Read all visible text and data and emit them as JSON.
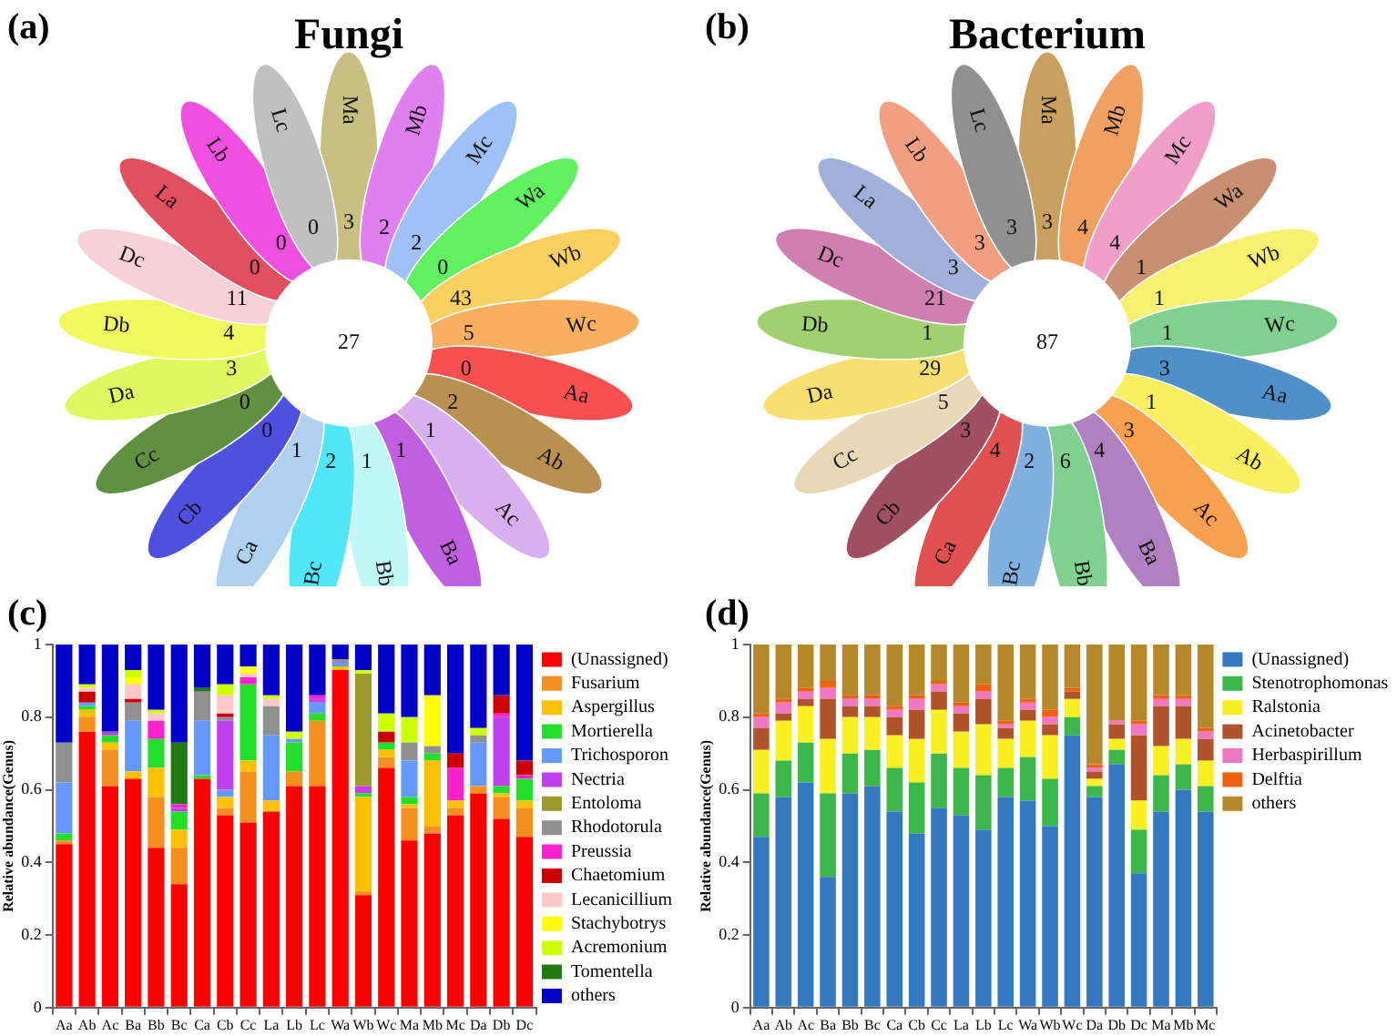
{
  "chart_data": [
    {
      "type": "other",
      "title": "Fungi",
      "annotations": [
        "(a)",
        "27"
      ],
      "data_labels": true,
      "categories": [
        "Ma",
        "Mb",
        "Mc",
        "Wa",
        "Wb",
        "Wc",
        "Aa",
        "Ab",
        "Ac",
        "Ba",
        "Bb",
        "Bc",
        "Ca",
        "Cb",
        "Cc",
        "Da",
        "Db",
        "Dc",
        "La",
        "Lb",
        "Lc"
      ],
      "values": [
        3,
        2,
        2,
        0,
        43,
        5,
        0,
        2,
        1,
        1,
        1,
        2,
        1,
        0,
        0,
        3,
        4,
        11,
        0,
        0,
        0
      ],
      "colors": [
        "#c8c080",
        "#e080f0",
        "#a0c0f8",
        "#60f060",
        "#f8d060",
        "#f8b060",
        "#f85050",
        "#b89050",
        "#d8b0f0",
        "#c060e0",
        "#c0f8f8",
        "#50e8f8",
        "#b0d0f0",
        "#5050e0",
        "#609040",
        "#e0f860",
        "#f0f860",
        "#f8d0d8",
        "#e05060",
        "#f050e0",
        "#c0c0c0"
      ]
    },
    {
      "type": "other",
      "title": "Bacterium",
      "annotations": [
        "(b)",
        "87"
      ],
      "data_labels": true,
      "categories": [
        "Ma",
        "Mb",
        "Mc",
        "Wa",
        "Wb",
        "Wc",
        "Aa",
        "Ab",
        "Ac",
        "Ba",
        "Bb",
        "Bc",
        "Ca",
        "Cb",
        "Cc",
        "Da",
        "Db",
        "Dc",
        "La",
        "Lb",
        "Lc"
      ],
      "values": [
        3,
        4,
        4,
        1,
        1,
        1,
        3,
        1,
        3,
        4,
        6,
        2,
        4,
        3,
        5,
        29,
        1,
        21,
        3,
        3,
        3
      ],
      "colors": [
        "#c8a060",
        "#f0a060",
        "#f0a0c8",
        "#c89070",
        "#f8f070",
        "#80d090",
        "#5090c8",
        "#f8f060",
        "#f8a050",
        "#b080c0",
        "#80d090",
        "#80b0e0",
        "#e05050",
        "#a05060",
        "#e8d8b8",
        "#f8e070",
        "#a0d070",
        "#d080b0",
        "#a0b0d8",
        "#f0a080",
        "#909090"
      ]
    },
    {
      "type": "bar",
      "stacked": true,
      "ylabel": "Relative abundance(Genus)",
      "legend": "right",
      "annotations": [
        "(c)"
      ],
      "ylim": [
        0,
        1
      ],
      "yticks": [
        0,
        0.2,
        0.4,
        0.6,
        0.8,
        1
      ],
      "categories": [
        "Aa",
        "Ab",
        "Ac",
        "Ba",
        "Bb",
        "Bc",
        "Ca",
        "Cb",
        "Cc",
        "La",
        "Lb",
        "Lc",
        "Wa",
        "Wb",
        "Wc",
        "Ma",
        "Mb",
        "Mc",
        "Da",
        "Db",
        "Dc"
      ],
      "series": [
        {
          "name": "(Unassigned)",
          "color": "#ff0000",
          "values": [
            0.45,
            0.76,
            0.61,
            0.63,
            0.44,
            0.34,
            0.63,
            0.53,
            0.51,
            0.54,
            0.61,
            0.61,
            0.93,
            0.31,
            0.66,
            0.46,
            0.48,
            0.53,
            0.59,
            0.52,
            0.47
          ]
        },
        {
          "name": "Fusarium",
          "color": "#f5901f",
          "values": [
            0.01,
            0.04,
            0.1,
            0,
            0.14,
            0.1,
            0,
            0.02,
            0.14,
            0,
            0.04,
            0.18,
            0,
            0.01,
            0.03,
            0.09,
            0.02,
            0.02,
            0.02,
            0.06,
            0.08
          ]
        },
        {
          "name": "Aspergillus",
          "color": "#ffc000",
          "values": [
            0,
            0.02,
            0.02,
            0.02,
            0.08,
            0.05,
            0,
            0.03,
            0.03,
            0.03,
            0,
            0,
            0.01,
            0.26,
            0.02,
            0.01,
            0.18,
            0.02,
            0,
            0.01,
            0.02
          ]
        },
        {
          "name": "Mortierella",
          "color": "#22e02a",
          "values": [
            0.02,
            0.01,
            0.02,
            0,
            0.08,
            0.05,
            0.01,
            0,
            0.21,
            0,
            0.08,
            0.02,
            0,
            0.01,
            0.02,
            0.02,
            0.02,
            0,
            0,
            0.02,
            0.06
          ]
        },
        {
          "name": "Trichosporon",
          "color": "#6699ff",
          "values": [
            0.14,
            0.01,
            0,
            0.14,
            0,
            0,
            0.15,
            0.02,
            0,
            0.18,
            0.01,
            0.03,
            0.01,
            0,
            0,
            0.1,
            0,
            0,
            0.12,
            0,
            0
          ]
        },
        {
          "name": "Nectria",
          "color": "#c040f0",
          "values": [
            0,
            0,
            0.01,
            0,
            0,
            0.01,
            0,
            0.19,
            0,
            0,
            0,
            0.01,
            0,
            0.02,
            0,
            0,
            0,
            0,
            0,
            0.19,
            0
          ]
        },
        {
          "name": "Entoloma",
          "color": "#9c9a2a",
          "values": [
            0,
            0,
            0,
            0,
            0,
            0,
            0,
            0,
            0,
            0,
            0,
            0,
            0,
            0.31,
            0,
            0,
            0,
            0,
            0,
            0,
            0
          ]
        },
        {
          "name": "Rhodotorula",
          "color": "#909090",
          "values": [
            0.11,
            0,
            0,
            0.05,
            0,
            0,
            0.08,
            0.01,
            0,
            0.08,
            0,
            0,
            0.01,
            0,
            0,
            0.05,
            0.02,
            0,
            0.02,
            0,
            0
          ]
        },
        {
          "name": "Preussia",
          "color": "#ff22cc",
          "values": [
            0,
            0,
            0,
            0,
            0.05,
            0.01,
            0,
            0,
            0.02,
            0,
            0,
            0.01,
            0,
            0,
            0,
            0,
            0,
            0.09,
            0,
            0.01,
            0.01
          ]
        },
        {
          "name": "Chaetomium",
          "color": "#cc0000",
          "values": [
            0,
            0.03,
            0,
            0.01,
            0,
            0,
            0,
            0.01,
            0,
            0,
            0,
            0,
            0,
            0,
            0.03,
            0,
            0,
            0.04,
            0,
            0.05,
            0.04
          ]
        },
        {
          "name": "Lecanicillium",
          "color": "#ffc8c8",
          "values": [
            0,
            0.01,
            0,
            0.04,
            0.02,
            0,
            0,
            0.05,
            0.01,
            0.02,
            0,
            0,
            0,
            0,
            0,
            0,
            0,
            0,
            0,
            0,
            0
          ]
        },
        {
          "name": "Stachybotrys",
          "color": "#ffff00",
          "values": [
            0,
            0,
            0,
            0.02,
            0,
            0,
            0,
            0,
            0.02,
            0,
            0,
            0,
            0,
            0,
            0,
            0,
            0.14,
            0,
            0,
            0,
            0
          ]
        },
        {
          "name": "Acremonium",
          "color": "#ccff00",
          "values": [
            0,
            0.01,
            0,
            0.02,
            0.01,
            0,
            0,
            0.03,
            0,
            0.01,
            0.02,
            0,
            0,
            0.01,
            0.05,
            0.07,
            0,
            0,
            0.02,
            0,
            0
          ]
        },
        {
          "name": "Tomentella",
          "color": "#207a10",
          "values": [
            0,
            0,
            0,
            0,
            0,
            0.17,
            0.01,
            0,
            0,
            0,
            0,
            0,
            0,
            0,
            0,
            0,
            0,
            0,
            0,
            0,
            0
          ]
        },
        {
          "name": "others",
          "color": "#0000c8",
          "values": [
            0.27,
            0.11,
            0.24,
            0.07,
            0.18,
            0.27,
            0.12,
            0.11,
            0.06,
            0.14,
            0.24,
            0.14,
            0.04,
            0.07,
            0.19,
            0.2,
            0.14,
            0.3,
            0.23,
            0.14,
            0.32
          ]
        }
      ]
    },
    {
      "type": "bar",
      "stacked": true,
      "ylabel": "Relative abundance(Genus)",
      "legend": "right",
      "annotations": [
        "(d)"
      ],
      "ylim": [
        0,
        1
      ],
      "yticks": [
        0,
        0.2,
        0.4,
        0.6,
        0.8,
        1
      ],
      "categories": [
        "Aa",
        "Ab",
        "Ac",
        "Ba",
        "Bb",
        "Bc",
        "Ca",
        "Cb",
        "Cc",
        "La",
        "Lb",
        "Lc",
        "Wa",
        "Wb",
        "Wc",
        "Da",
        "Db",
        "Dc",
        "Ma",
        "Mb",
        "Mc"
      ],
      "series": [
        {
          "name": "(Unassigned)",
          "color": "#3479c0",
          "values": [
            0.47,
            0.58,
            0.62,
            0.36,
            0.59,
            0.61,
            0.54,
            0.48,
            0.55,
            0.53,
            0.49,
            0.58,
            0.57,
            0.5,
            0.75,
            0.58,
            0.67,
            0.37,
            0.54,
            0.6,
            0.54
          ]
        },
        {
          "name": "Stenotrophomonas",
          "color": "#3cb84a",
          "values": [
            0.12,
            0.1,
            0.11,
            0.23,
            0.11,
            0.1,
            0.12,
            0.14,
            0.15,
            0.13,
            0.15,
            0.08,
            0.12,
            0.13,
            0.05,
            0.03,
            0.04,
            0.12,
            0.1,
            0.07,
            0.07
          ]
        },
        {
          "name": "Ralstonia",
          "color": "#f8f020",
          "values": [
            0.12,
            0.11,
            0.1,
            0.15,
            0.1,
            0.09,
            0.09,
            0.12,
            0.12,
            0.1,
            0.14,
            0.08,
            0.1,
            0.12,
            0.05,
            0.02,
            0.03,
            0.08,
            0.08,
            0.07,
            0.07
          ]
        },
        {
          "name": "Acinetobacter",
          "color": "#b0532a",
          "values": [
            0.06,
            0.02,
            0.02,
            0.11,
            0.03,
            0.03,
            0.05,
            0.08,
            0.05,
            0.05,
            0.07,
            0.03,
            0.03,
            0.03,
            0.02,
            0.02,
            0.04,
            0.18,
            0.11,
            0.09,
            0.06
          ]
        },
        {
          "name": "Herbaspirillum",
          "color": "#f078c0",
          "values": [
            0.03,
            0.03,
            0.02,
            0.03,
            0.02,
            0.02,
            0.02,
            0.03,
            0.02,
            0.02,
            0.02,
            0.01,
            0.02,
            0.02,
            0,
            0.01,
            0.01,
            0.03,
            0.02,
            0.02,
            0.02
          ]
        },
        {
          "name": "Delftia",
          "color": "#f06010",
          "values": [
            0.01,
            0.01,
            0.01,
            0.02,
            0.01,
            0.01,
            0.01,
            0.01,
            0.01,
            0.01,
            0.02,
            0.01,
            0.01,
            0.02,
            0.01,
            0.01,
            0,
            0.01,
            0.01,
            0.01,
            0.01
          ]
        },
        {
          "name": "others",
          "color": "#b5892a",
          "values": [
            0.19,
            0.15,
            0.12,
            0.1,
            0.14,
            0.14,
            0.17,
            0.14,
            0.1,
            0.16,
            0.11,
            0.21,
            0.15,
            0.18,
            0.12,
            0.33,
            0.21,
            0.21,
            0.14,
            0.14,
            0.23
          ]
        }
      ]
    }
  ]
}
